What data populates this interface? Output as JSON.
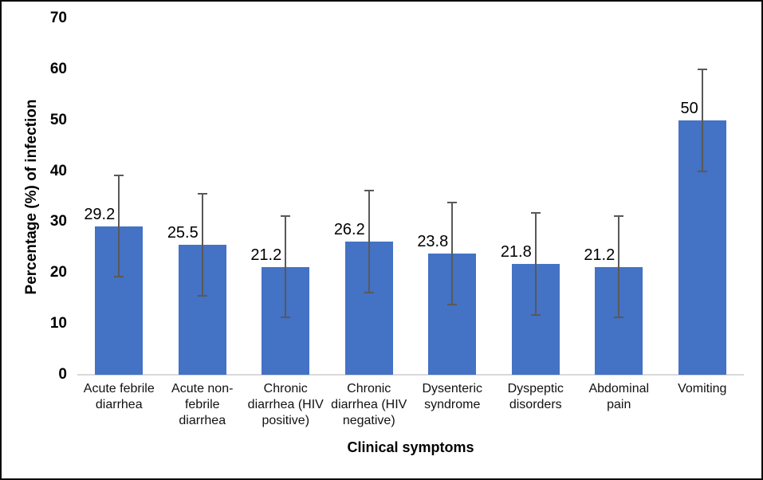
{
  "figure": {
    "background": "#ffffff",
    "border_color": "#0a0a0a"
  },
  "chart_data": {
    "type": "bar",
    "title": "",
    "xlabel": "Clinical symptoms",
    "ylabel": "Percentage (%) of infection",
    "ylim": [
      0,
      70
    ],
    "yticks": [
      0,
      10,
      20,
      30,
      40,
      50,
      60,
      70
    ],
    "grid": false,
    "legend": false,
    "categories": [
      "Acute febrile diarrhea",
      "Acute non-febrile diarrhea",
      "Chronic diarrhea (HIV positive)",
      "Chronic diarrhea (HIV negative)",
      "Dysenteric syndrome",
      "Dyspeptic disorders",
      "Abdominal pain",
      "Vomiting"
    ],
    "category_display_lines": [
      [
        "Acute febrile",
        "diarrhea"
      ],
      [
        "Acute non-",
        "febrile",
        "diarrhea"
      ],
      [
        "Chronic",
        "diarrhea (HIV",
        "positive)"
      ],
      [
        "Chronic",
        "diarrhea (HIV",
        "negative)"
      ],
      [
        "Dysenteric",
        "syndrome"
      ],
      [
        "Dyspeptic",
        "disorders"
      ],
      [
        "Abdominal",
        "pain"
      ],
      [
        "Vomiting"
      ]
    ],
    "values": [
      29.2,
      25.5,
      21.2,
      26.2,
      23.8,
      21.8,
      21.2,
      50
    ],
    "data_labels": [
      "29.2",
      "25.5",
      "21.2",
      "26.2",
      "23.8",
      "21.8",
      "21.2",
      "50"
    ],
    "error_bars": {
      "type": "symmetric",
      "plus_minus": 10
    },
    "colors": {
      "bar": "#4472C4",
      "error_bar": "#595959",
      "axis_line": "#D9D9D9",
      "text": "#000000"
    }
  }
}
